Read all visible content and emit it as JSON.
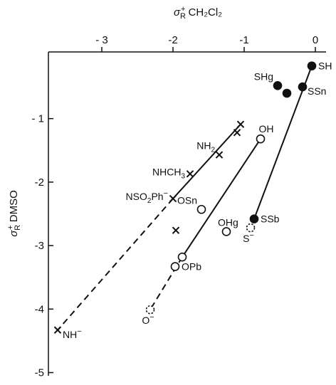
{
  "chart_data": {
    "type": "scatter",
    "x_axis": {
      "label_main": "σ",
      "label_sub": "R",
      "label_sup": "+",
      "label_rest": " CH₂Cl₂",
      "position": "top",
      "range": [
        -3.75,
        0.15
      ],
      "ticks": [
        {
          "value": -3,
          "label": "- 3"
        },
        {
          "value": -2,
          "label": "-2"
        },
        {
          "value": -1,
          "label": "-1"
        },
        {
          "value": 0,
          "label": "0"
        }
      ]
    },
    "y_axis": {
      "label_main": "σ",
      "label_sub": "R",
      "label_sup": "+",
      "label_rest": " DMSO",
      "position": "left",
      "range": [
        -5.05,
        0.05
      ],
      "ticks": [
        {
          "value": -1,
          "label": "- 1"
        },
        {
          "value": -2,
          "label": "-2"
        },
        {
          "value": -3,
          "label": "-3"
        },
        {
          "value": -4,
          "label": "-4"
        },
        {
          "value": -5,
          "label": "-5"
        }
      ]
    },
    "grid": false,
    "point_labels": {
      "sh": "SH",
      "shg": "SHg",
      "ssn": "SSn",
      "ssb": "SSb",
      "s_minus": "S⁻",
      "oh": "OH",
      "osn": "OSn",
      "ohg": "OHg",
      "opb": "OPb",
      "o_minus": "O⁻",
      "nh2": "NH₂",
      "nhch3": "NHCH₃",
      "nso2ph": "NSO₂Ph⁻",
      "nh_minus": "NH⁻"
    },
    "series": [
      {
        "marker": "filled-circle",
        "points": [
          {
            "key": "sh",
            "x": -0.05,
            "y": -0.17,
            "label_side": "right"
          },
          {
            "key": "shg",
            "x": -0.53,
            "y": -0.48,
            "label_side": "above-left"
          },
          {
            "key": "",
            "x": -0.4,
            "y": -0.6
          },
          {
            "key": "ssn",
            "x": -0.18,
            "y": -0.5,
            "label_side": "below-right"
          },
          {
            "key": "ssb",
            "x": -0.86,
            "y": -2.58,
            "label_side": "right"
          }
        ]
      },
      {
        "marker": "dashed-circle",
        "points": [
          {
            "key": "s_minus",
            "x": -0.91,
            "y": -2.72,
            "label_side": "below"
          }
        ]
      },
      {
        "marker": "open-circle",
        "points": [
          {
            "key": "oh",
            "x": -0.77,
            "y": -1.32,
            "label_side": "above"
          },
          {
            "key": "osn",
            "x": -1.6,
            "y": -2.43,
            "label_side": "above-left"
          },
          {
            "key": "ohg",
            "x": -1.25,
            "y": -2.78,
            "label_side": "above-right"
          },
          {
            "key": "",
            "x": -1.87,
            "y": -3.18
          },
          {
            "key": "opb",
            "x": -1.97,
            "y": -3.33,
            "label_side": "right"
          }
        ]
      },
      {
        "marker": "dashed-circle",
        "points": [
          {
            "key": "o_minus",
            "x": -2.32,
            "y": -4.01,
            "label_side": "below"
          }
        ]
      },
      {
        "marker": "cross",
        "points": [
          {
            "key": "",
            "x": -1.05,
            "y": -1.09
          },
          {
            "key": "",
            "x": -1.1,
            "y": -1.22
          },
          {
            "key": "nh2",
            "x": -1.35,
            "y": -1.57,
            "label_side": "above-left"
          },
          {
            "key": "nhch3",
            "x": -1.76,
            "y": -1.87,
            "label_side": "left"
          },
          {
            "key": "nso2ph",
            "x": -2.0,
            "y": -2.26,
            "label_side": "left"
          },
          {
            "key": "",
            "x": -1.96,
            "y": -2.76
          },
          {
            "key": "nh_minus",
            "x": -3.62,
            "y": -4.33,
            "label_side": "below-right"
          }
        ]
      }
    ],
    "lines": [
      {
        "style": "solid",
        "from": [
          -0.05,
          -0.17
        ],
        "to": [
          -0.86,
          -2.58
        ]
      },
      {
        "style": "solid",
        "from": [
          -0.77,
          -1.32
        ],
        "to": [
          -1.87,
          -3.18
        ]
      },
      {
        "style": "dashed",
        "from": [
          -1.87,
          -3.18
        ],
        "to": [
          -2.32,
          -4.01
        ]
      },
      {
        "style": "solid",
        "from": [
          -1.05,
          -1.09
        ],
        "to": [
          -2.0,
          -2.26
        ]
      },
      {
        "style": "dashed",
        "from": [
          -2.0,
          -2.26
        ],
        "to": [
          -3.62,
          -4.33
        ]
      }
    ]
  }
}
